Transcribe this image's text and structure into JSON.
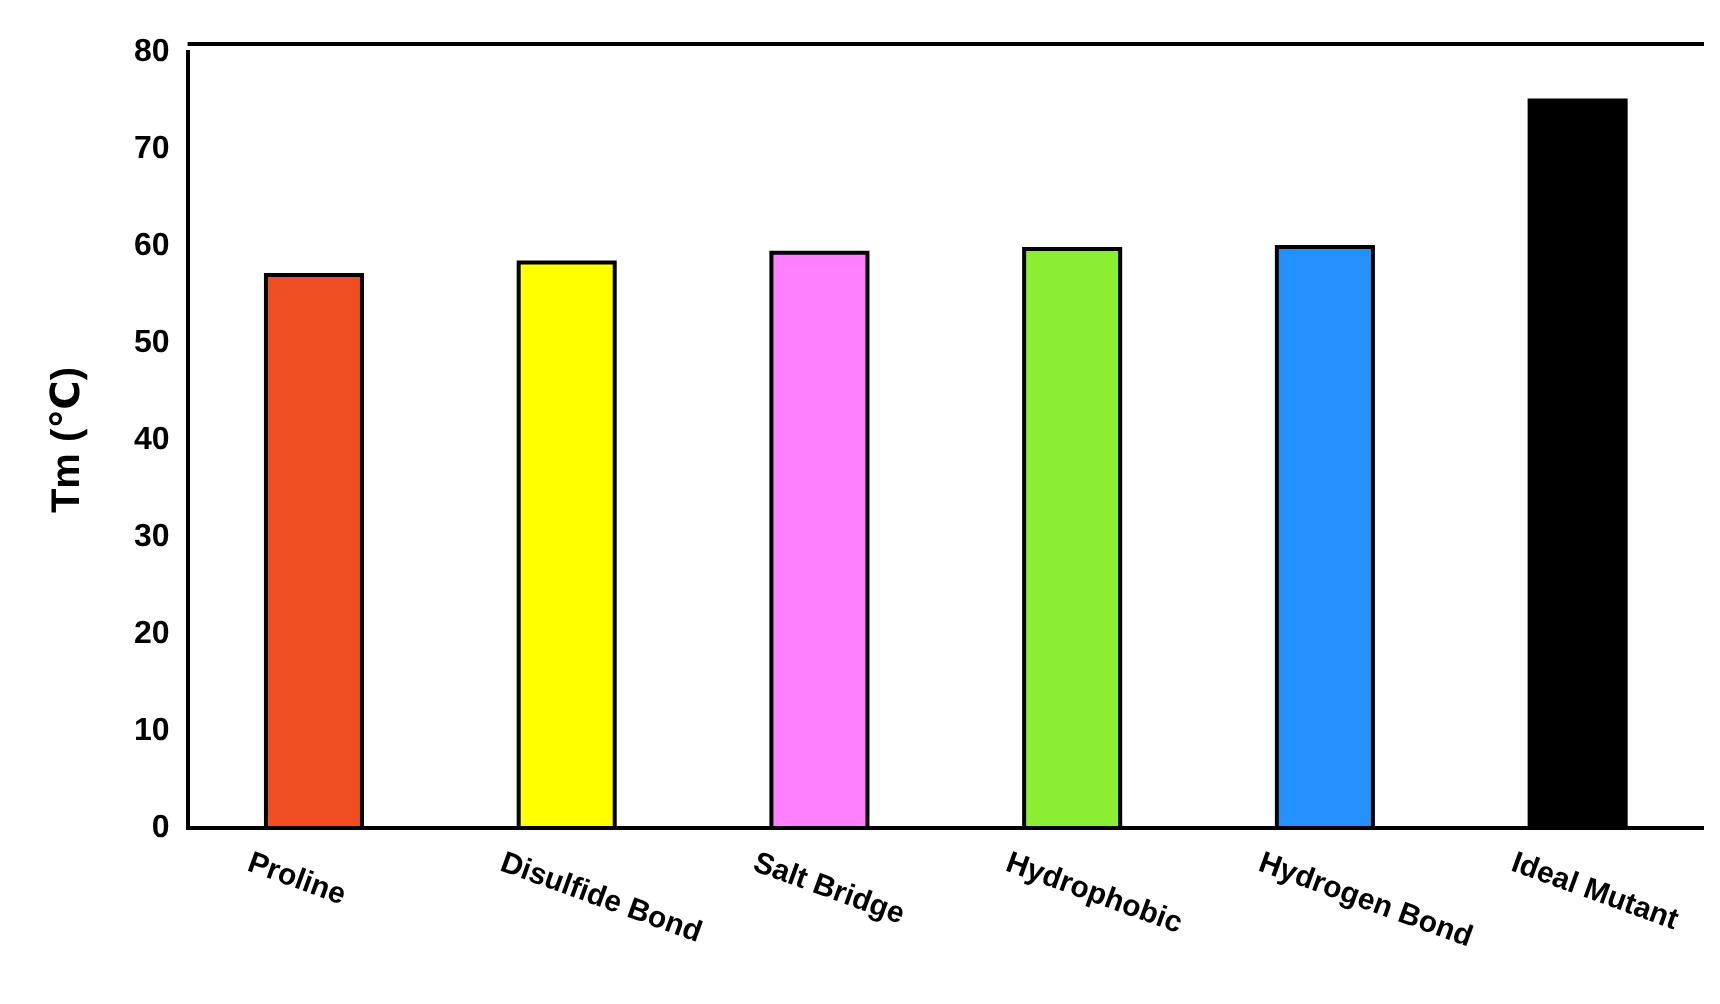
{
  "chart_data": {
    "type": "bar",
    "ylabel": "Tm (℃)",
    "categories": [
      "Proline",
      "Disulfide Bond",
      "Salt Bridge",
      "Hydrophobic",
      "Hydrogen Bond",
      "Ideal Mutant"
    ],
    "values": [
      57,
      58.3,
      59.3,
      59.7,
      59.9,
      75
    ],
    "colors": [
      "#f04e23",
      "#ffff00",
      "#ff80ff",
      "#8bee32",
      "#2491ff",
      "#000000"
    ],
    "ylim": [
      0,
      80
    ],
    "yticks": [
      0,
      10,
      20,
      30,
      40,
      50,
      60,
      70,
      80
    ],
    "grid": false,
    "legend": false
  }
}
